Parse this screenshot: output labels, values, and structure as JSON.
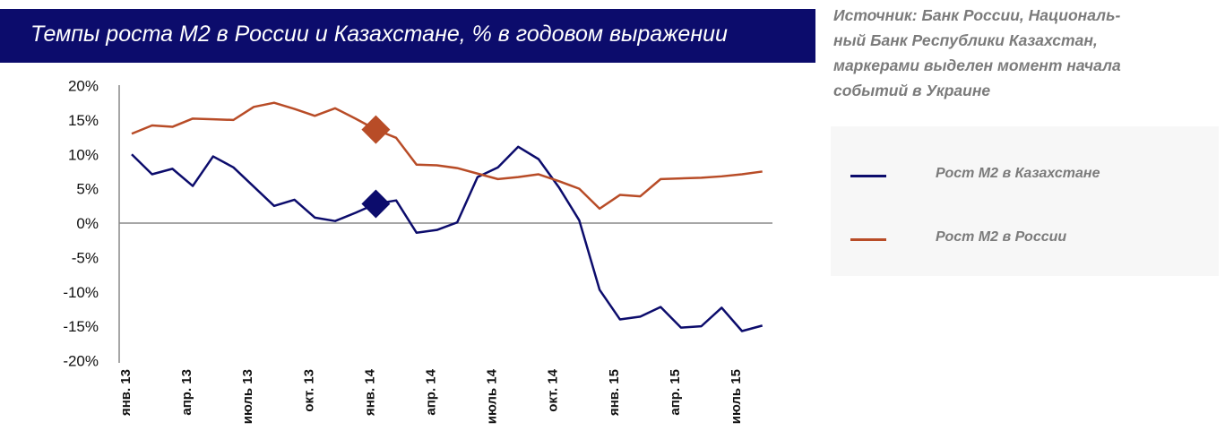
{
  "title": "Темпы роста М2 в России и Казахстане, % в годовом выражении",
  "source": "Источник: Банк России, Националь-ный Банк Республики Казахстан, маркерами выделен момент начала событий в Украине",
  "source_lines": [
    "Источник: Банк России, Националь-",
    "ный Банк Республики Казахстан,",
    "маркерами выделен момент начала",
    "событий в Украине"
  ],
  "chart_data": {
    "type": "line",
    "title": "Темпы роста М2 в России и Казахстане, % в годовом выражении",
    "ylim": [
      -20,
      20
    ],
    "yticks": [
      "20%",
      "15%",
      "10%",
      "5%",
      "0%",
      "-5%",
      "-10%",
      "-15%",
      "-20%"
    ],
    "ytick_values": [
      20,
      15,
      10,
      5,
      0,
      -5,
      -10,
      -15,
      -20
    ],
    "x": [
      "2013-01",
      "2013-02",
      "2013-03",
      "2013-04",
      "2013-05",
      "2013-06",
      "2013-07",
      "2013-08",
      "2013-09",
      "2013-10",
      "2013-11",
      "2013-12",
      "2014-01",
      "2014-02",
      "2014-03",
      "2014-04",
      "2014-05",
      "2014-06",
      "2014-07",
      "2014-08",
      "2014-09",
      "2014-10",
      "2014-11",
      "2014-12",
      "2015-01",
      "2015-02",
      "2015-03",
      "2015-04",
      "2015-05",
      "2015-06",
      "2015-07",
      "2015-08"
    ],
    "xtick_labels": [
      {
        "index": 0,
        "label": "янв. 13"
      },
      {
        "index": 3,
        "label": "апр. 13"
      },
      {
        "index": 6,
        "label": "июль 13"
      },
      {
        "index": 9,
        "label": "окт. 13"
      },
      {
        "index": 12,
        "label": "янв. 14"
      },
      {
        "index": 15,
        "label": "апр. 14"
      },
      {
        "index": 18,
        "label": "июль 14"
      },
      {
        "index": 21,
        "label": "окт. 14"
      },
      {
        "index": 24,
        "label": "янв. 15"
      },
      {
        "index": 27,
        "label": "апр. 15"
      },
      {
        "index": 30,
        "label": "июль 15"
      }
    ],
    "series": [
      {
        "name": "Рост М2 в Казахстане",
        "color": "#0c0c6c",
        "values": [
          10.0,
          7.1,
          7.9,
          5.4,
          9.7,
          8.1,
          5.3,
          2.5,
          3.4,
          0.8,
          0.3,
          1.5,
          2.8,
          3.3,
          -1.4,
          -1.0,
          0.1,
          6.7,
          8.1,
          11.1,
          9.3,
          5.2,
          0.4,
          -9.7,
          -14.0,
          -13.6,
          -12.2,
          -15.2,
          -15.0,
          -12.3,
          -15.7,
          -14.9
        ],
        "marker": {
          "index": 12,
          "value": 2.8
        }
      },
      {
        "name": "Рост М2 в России",
        "color": "#b84c27",
        "values": [
          13.0,
          14.2,
          14.0,
          15.2,
          15.1,
          15.0,
          16.9,
          17.5,
          16.6,
          15.6,
          16.7,
          15.2,
          13.6,
          12.4,
          8.5,
          8.4,
          8.0,
          7.2,
          6.4,
          6.7,
          7.1,
          6.1,
          5.0,
          2.1,
          4.1,
          3.9,
          6.4,
          6.5,
          6.6,
          6.8,
          7.1,
          7.5
        ],
        "marker": {
          "index": 12,
          "value": 13.6
        }
      }
    ],
    "legend": "right",
    "grid": false
  }
}
